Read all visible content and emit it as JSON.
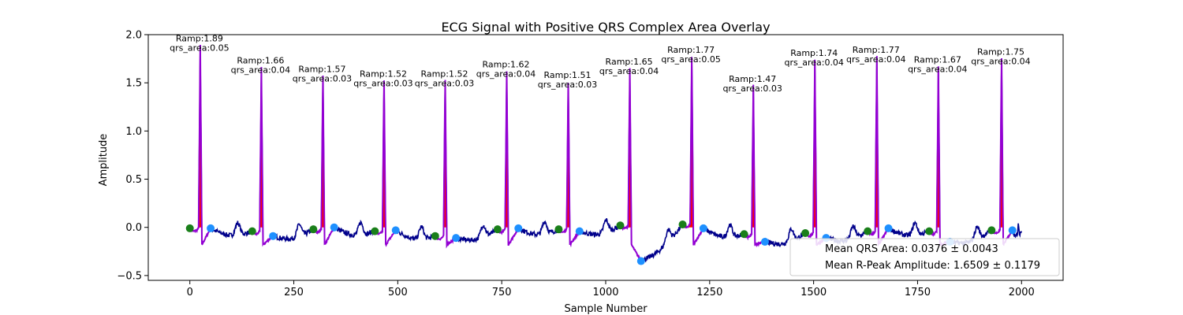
{
  "chart_data": {
    "type": "line",
    "title": "ECG Signal with Positive QRS Complex Area Overlay",
    "xlabel": "Sample Number",
    "ylabel": "Amplitude",
    "xlim": [
      -100,
      2100
    ],
    "ylim": [
      -0.55,
      2.0
    ],
    "xticks": [
      0,
      250,
      500,
      750,
      1000,
      1250,
      1500,
      1750,
      2000
    ],
    "yticks": [
      -0.5,
      0.0,
      0.5,
      1.0,
      1.5,
      2.0
    ],
    "xtick_labels": [
      "0",
      "250",
      "500",
      "750",
      "1000",
      "1250",
      "1500",
      "1750",
      "2000"
    ],
    "ytick_labels": [
      "−0.5",
      "0.0",
      "0.5",
      "1.0",
      "1.5",
      "2.0"
    ],
    "grid": false,
    "colors": {
      "signal": "#00008b",
      "qrs_segment": "#9400d3",
      "qrs_fill": "#ff0000",
      "onset_marker": "#1a7f1a",
      "offset_marker": "#1e90ff"
    },
    "beats": [
      {
        "r_sample": 25,
        "ramp": 1.89,
        "qrs_area": 0.05,
        "onset": [
          0,
          -0.01
        ],
        "offset": [
          50,
          -0.01
        ],
        "ramp_label": "Ramp:1.89",
        "area_label": "qrs_area:0.05"
      },
      {
        "r_sample": 172,
        "ramp": 1.66,
        "qrs_area": 0.04,
        "onset": [
          150,
          -0.04
        ],
        "offset": [
          200,
          -0.09
        ],
        "ramp_label": "Ramp:1.66",
        "area_label": "qrs_area:0.04"
      },
      {
        "r_sample": 320,
        "ramp": 1.57,
        "qrs_area": 0.03,
        "onset": [
          297,
          -0.02
        ],
        "offset": [
          347,
          0.0
        ],
        "ramp_label": "Ramp:1.57",
        "area_label": "qrs_area:0.03"
      },
      {
        "r_sample": 467,
        "ramp": 1.52,
        "qrs_area": 0.03,
        "onset": [
          445,
          -0.04
        ],
        "offset": [
          495,
          -0.03
        ],
        "ramp_label": "Ramp:1.52",
        "area_label": "qrs_area:0.03"
      },
      {
        "r_sample": 614,
        "ramp": 1.52,
        "qrs_area": 0.03,
        "onset": [
          590,
          -0.09
        ],
        "offset": [
          640,
          -0.11
        ],
        "ramp_label": "Ramp:1.52",
        "area_label": "qrs_area:0.03"
      },
      {
        "r_sample": 762,
        "ramp": 1.62,
        "qrs_area": 0.04,
        "onset": [
          740,
          -0.02
        ],
        "offset": [
          790,
          -0.01
        ],
        "ramp_label": "Ramp:1.62",
        "area_label": "qrs_area:0.04"
      },
      {
        "r_sample": 910,
        "ramp": 1.51,
        "qrs_area": 0.03,
        "onset": [
          887,
          -0.02
        ],
        "offset": [
          937,
          -0.04
        ],
        "ramp_label": "Ramp:1.51",
        "area_label": "qrs_area:0.03"
      },
      {
        "r_sample": 1058,
        "ramp": 1.65,
        "qrs_area": 0.04,
        "onset": [
          1035,
          0.02
        ],
        "offset": [
          1085,
          -0.35
        ],
        "ramp_label": "Ramp:1.65",
        "area_label": "qrs_area:0.04"
      },
      {
        "r_sample": 1207,
        "ramp": 1.77,
        "qrs_area": 0.05,
        "onset": [
          1185,
          0.03
        ],
        "offset": [
          1235,
          -0.01
        ],
        "ramp_label": "Ramp:1.77",
        "area_label": "qrs_area:0.05"
      },
      {
        "r_sample": 1355,
        "ramp": 1.47,
        "qrs_area": 0.03,
        "onset": [
          1333,
          -0.07
        ],
        "offset": [
          1383,
          -0.15
        ],
        "ramp_label": "Ramp:1.47",
        "area_label": "qrs_area:0.03"
      },
      {
        "r_sample": 1503,
        "ramp": 1.74,
        "qrs_area": 0.04,
        "onset": [
          1480,
          -0.06
        ],
        "offset": [
          1530,
          -0.11
        ],
        "ramp_label": "Ramp:1.74",
        "area_label": "qrs_area:0.04"
      },
      {
        "r_sample": 1652,
        "ramp": 1.77,
        "qrs_area": 0.04,
        "onset": [
          1630,
          -0.04
        ],
        "offset": [
          1680,
          -0.01
        ],
        "ramp_label": "Ramp:1.77",
        "area_label": "qrs_area:0.04"
      },
      {
        "r_sample": 1800,
        "ramp": 1.67,
        "qrs_area": 0.04,
        "onset": [
          1778,
          -0.04
        ],
        "offset": [
          1828,
          -0.15
        ],
        "ramp_label": "Ramp:1.67",
        "area_label": "qrs_area:0.04"
      },
      {
        "r_sample": 1952,
        "ramp": 1.75,
        "qrs_area": 0.04,
        "onset": [
          1928,
          -0.03
        ],
        "offset": [
          1978,
          -0.03
        ],
        "ramp_label": "Ramp:1.75",
        "area_label": "qrs_area:0.04"
      }
    ],
    "legend": {
      "placement": "lower right",
      "entries": [
        "Mean QRS Area: 0.0376 ± 0.0043",
        "Mean R-Peak Amplitude: 1.6509 ± 0.1179"
      ]
    }
  }
}
